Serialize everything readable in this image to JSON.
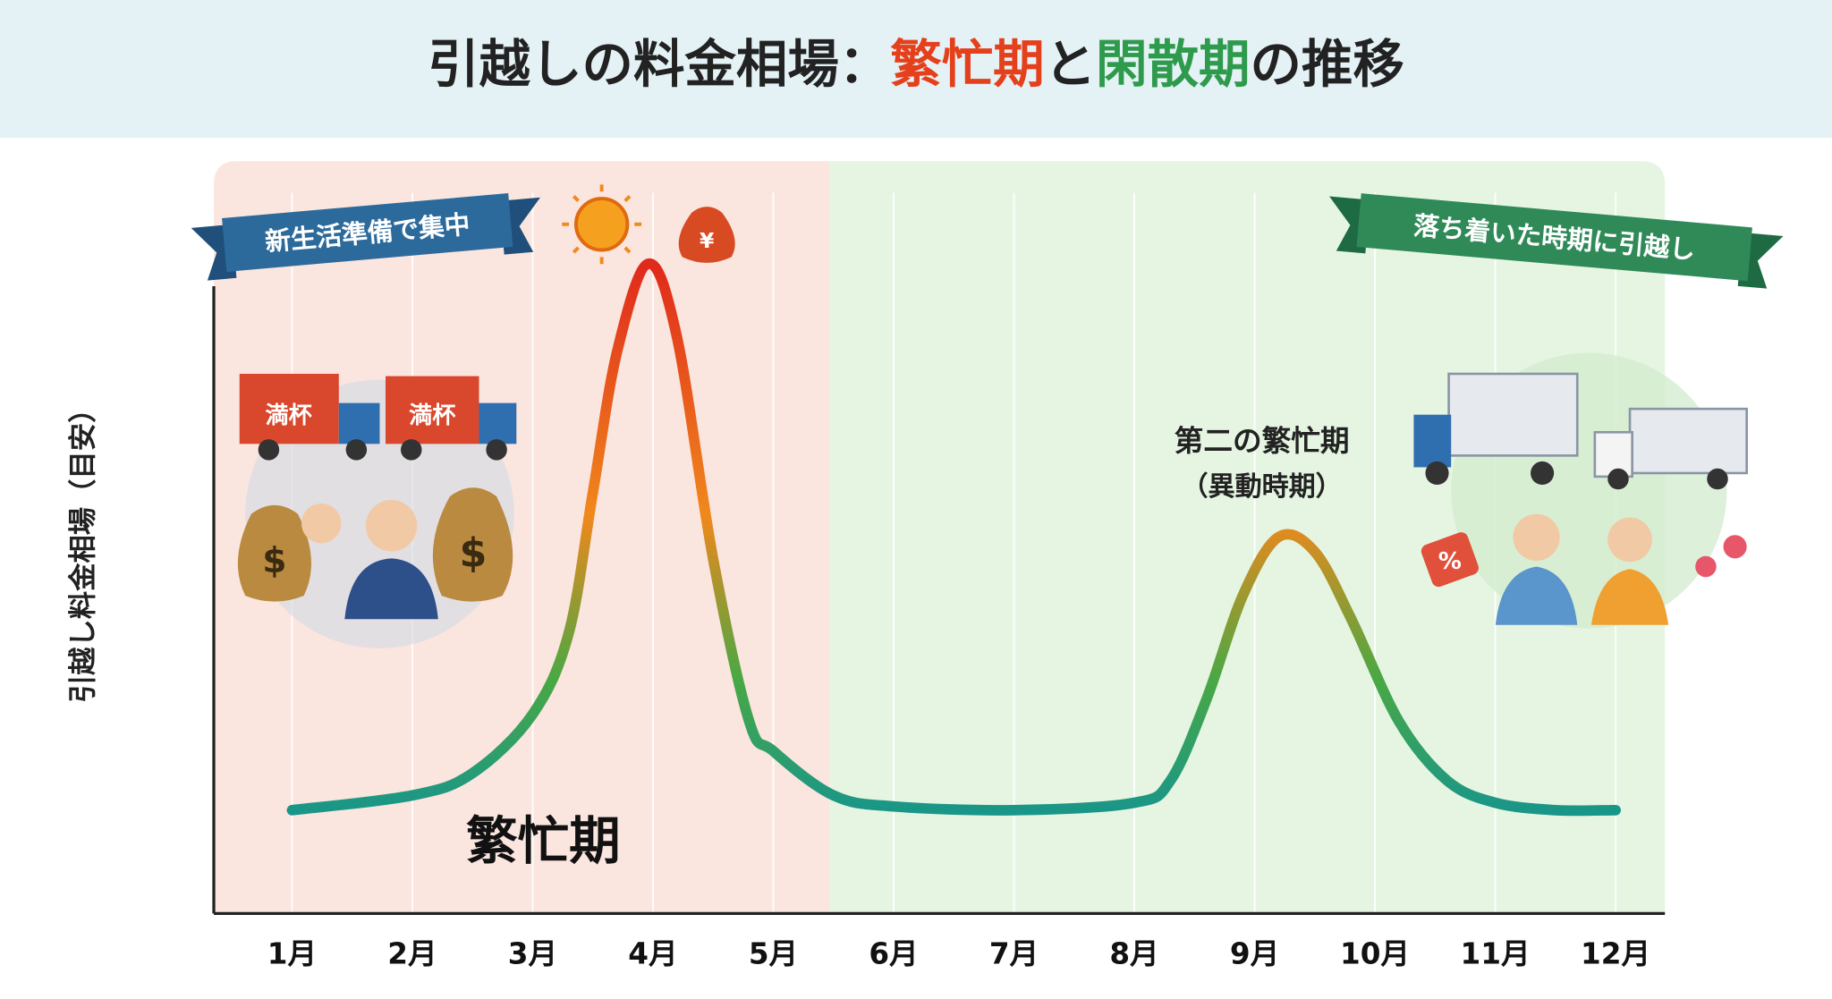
{
  "chart_data": {
    "type": "line",
    "title_parts": [
      "引越しの料金相場：",
      "繁忙期",
      "と",
      "閑散期",
      "の推移"
    ],
    "y_label": "引越し料金相場（目安）",
    "x": [
      1,
      2,
      2.5,
      3,
      3.3,
      3.5,
      3.7,
      3.96,
      4.2,
      4.5,
      4.8,
      5,
      5.5,
      6,
      7,
      8,
      8.3,
      8.6,
      8.9,
      9.2,
      9.5,
      9.8,
      10.2,
      10.6,
      11,
      11.5,
      12
    ],
    "series": [
      {
        "values": [
          14,
          16,
          19,
          27,
          38,
          57,
          76,
          88,
          78,
          48,
          26,
          22,
          16,
          14.5,
          14,
          15,
          18,
          29,
          43,
          51,
          49,
          40,
          26,
          18,
          15,
          14,
          14
        ]
      }
    ],
    "xlim": [
      0.35,
      12.41
    ],
    "ylim": [
      0,
      100
    ],
    "xticks": [
      {
        "value": 1,
        "label": "1月"
      },
      {
        "value": 2,
        "label": "2月"
      },
      {
        "value": 3,
        "label": "3月"
      },
      {
        "value": 4,
        "label": "4月"
      },
      {
        "value": 5,
        "label": "5月"
      },
      {
        "value": 6,
        "label": "6月"
      },
      {
        "value": 7,
        "label": "7月"
      },
      {
        "value": 8,
        "label": "8月"
      },
      {
        "value": 9,
        "label": "9月"
      },
      {
        "value": 10,
        "label": "10月"
      },
      {
        "value": 11,
        "label": "11月"
      },
      {
        "value": 12,
        "label": "12月"
      }
    ],
    "grid": true,
    "region_label": "繁忙期",
    "banners": [
      "新生活準備で集中",
      "落ち着いた時期に引越し"
    ],
    "annotation": [
      "第二の繁忙期",
      "（異動時期）"
    ],
    "icon_texts": {
      "truck": "満杯",
      "dollar": "$",
      "yen": "¥",
      "sale": "%"
    }
  }
}
